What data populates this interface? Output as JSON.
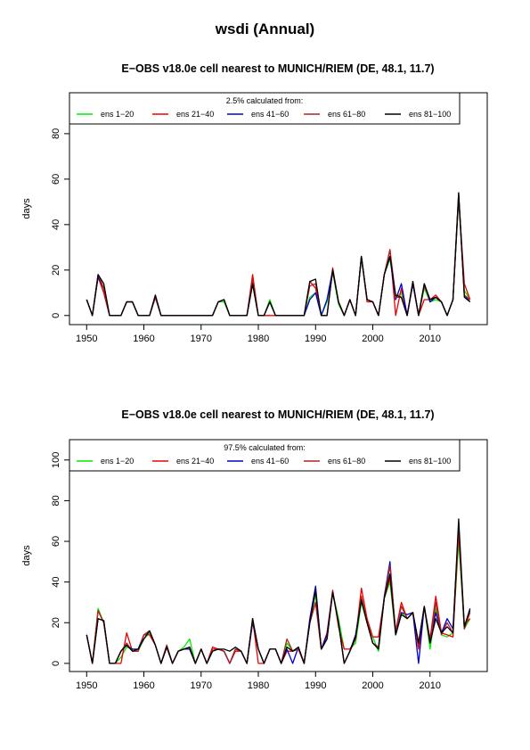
{
  "page": {
    "title": "wsdi (Annual)"
  },
  "chart_data": [
    {
      "type": "line",
      "title": "E−OBS v18.0e cell nearest to MUNICH/RIEM (DE, 48.1, 11.7)",
      "xlabel": "",
      "ylabel": "days",
      "xlim": [
        1947,
        2020
      ],
      "ylim": [
        -4,
        98
      ],
      "xticks": [
        1950,
        1960,
        1970,
        1980,
        1990,
        2000,
        2010
      ],
      "yticks": [
        0,
        20,
        40,
        60,
        80
      ],
      "legend": {
        "title": "2.5% calculated from:",
        "placement": "top"
      },
      "x": [
        1950,
        1951,
        1952,
        1953,
        1954,
        1955,
        1956,
        1957,
        1958,
        1959,
        1960,
        1961,
        1962,
        1963,
        1964,
        1965,
        1966,
        1967,
        1968,
        1969,
        1970,
        1971,
        1972,
        1973,
        1974,
        1975,
        1976,
        1977,
        1978,
        1979,
        1980,
        1981,
        1982,
        1983,
        1984,
        1985,
        1986,
        1987,
        1988,
        1989,
        1990,
        1991,
        1992,
        1993,
        1994,
        1995,
        1996,
        1997,
        1998,
        1999,
        2000,
        2001,
        2002,
        2003,
        2004,
        2005,
        2006,
        2007,
        2008,
        2009,
        2010,
        2011,
        2012,
        2013,
        2014,
        2015,
        2016,
        2017
      ],
      "series": [
        {
          "name": "ens 1−20",
          "color": "#00ee00",
          "values": [
            7,
            0,
            17,
            10,
            0,
            0,
            0,
            6,
            6,
            0,
            0,
            0,
            8,
            0,
            0,
            0,
            0,
            0,
            0,
            0,
            0,
            0,
            0,
            6,
            6,
            0,
            0,
            0,
            0,
            14,
            0,
            0,
            7,
            0,
            0,
            0,
            0,
            0,
            0,
            8,
            10,
            0,
            6,
            19,
            5,
            0,
            7,
            0,
            25,
            7,
            6,
            0,
            18,
            25,
            8,
            10,
            0,
            14,
            0,
            12,
            6,
            7,
            6,
            0,
            7,
            51,
            11,
            7
          ]
        },
        {
          "name": "ens 21−40",
          "color": "#ee0000",
          "values": [
            7,
            0,
            17,
            10,
            0,
            0,
            0,
            6,
            6,
            0,
            0,
            0,
            9,
            0,
            0,
            0,
            0,
            0,
            0,
            0,
            0,
            0,
            0,
            6,
            7,
            0,
            0,
            0,
            0,
            18,
            0,
            0,
            0,
            0,
            0,
            0,
            0,
            0,
            0,
            15,
            12,
            0,
            0,
            21,
            6,
            0,
            7,
            0,
            26,
            6,
            6,
            0,
            18,
            29,
            0,
            12,
            0,
            14,
            0,
            7,
            7,
            9,
            6,
            0,
            7,
            52,
            14,
            7
          ]
        },
        {
          "name": "ens 41−60",
          "color": "#0000cc",
          "values": [
            7,
            0,
            17,
            12,
            0,
            0,
            0,
            6,
            6,
            0,
            0,
            0,
            8,
            0,
            0,
            0,
            0,
            0,
            0,
            0,
            0,
            0,
            0,
            6,
            7,
            0,
            0,
            0,
            0,
            14,
            0,
            0,
            6,
            0,
            0,
            0,
            0,
            0,
            0,
            7,
            10,
            0,
            7,
            20,
            6,
            0,
            7,
            0,
            26,
            7,
            6,
            0,
            18,
            26,
            7,
            14,
            0,
            14,
            0,
            14,
            6,
            8,
            6,
            0,
            7,
            53,
            9,
            6
          ]
        },
        {
          "name": "ens 61−80",
          "color": "#b22222",
          "values": [
            7,
            0,
            18,
            12,
            0,
            0,
            0,
            6,
            6,
            0,
            0,
            0,
            8,
            0,
            0,
            0,
            0,
            0,
            0,
            0,
            0,
            0,
            0,
            6,
            7,
            0,
            0,
            0,
            0,
            16,
            0,
            0,
            6,
            0,
            0,
            0,
            0,
            0,
            0,
            13,
            14,
            0,
            0,
            20,
            6,
            0,
            7,
            0,
            26,
            7,
            6,
            0,
            18,
            29,
            8,
            8,
            0,
            15,
            0,
            13,
            7,
            8,
            6,
            0,
            7,
            54,
            9,
            7
          ]
        },
        {
          "name": "ens 81−100",
          "color": "#000000",
          "values": [
            7,
            0,
            18,
            14,
            0,
            0,
            0,
            6,
            6,
            0,
            0,
            0,
            9,
            0,
            0,
            0,
            0,
            0,
            0,
            0,
            0,
            0,
            0,
            6,
            7,
            0,
            0,
            0,
            0,
            14,
            0,
            0,
            6,
            0,
            0,
            0,
            0,
            0,
            0,
            15,
            16,
            0,
            0,
            20,
            6,
            0,
            7,
            0,
            26,
            7,
            6,
            0,
            18,
            26,
            9,
            8,
            0,
            15,
            0,
            14,
            7,
            8,
            6,
            0,
            7,
            54,
            8,
            6
          ]
        }
      ]
    },
    {
      "type": "line",
      "title": "E−OBS v18.0e cell nearest to MUNICH/RIEM (DE, 48.1, 11.7)",
      "xlabel": "",
      "ylabel": "days",
      "xlim": [
        1947,
        2020
      ],
      "ylim": [
        -4,
        110
      ],
      "xticks": [
        1950,
        1960,
        1970,
        1980,
        1990,
        2000,
        2010
      ],
      "yticks": [
        0,
        20,
        40,
        60,
        80,
        100
      ],
      "legend": {
        "title": "97.5% calculated from:",
        "placement": "top"
      },
      "x": [
        1950,
        1951,
        1952,
        1953,
        1954,
        1955,
        1956,
        1957,
        1958,
        1959,
        1960,
        1961,
        1962,
        1963,
        1964,
        1965,
        1966,
        1967,
        1968,
        1969,
        1970,
        1971,
        1972,
        1973,
        1974,
        1975,
        1976,
        1977,
        1978,
        1979,
        1980,
        1981,
        1982,
        1983,
        1984,
        1985,
        1986,
        1987,
        1988,
        1989,
        1990,
        1991,
        1992,
        1993,
        1994,
        1995,
        1996,
        1997,
        1998,
        1999,
        2000,
        2001,
        2002,
        2003,
        2004,
        2005,
        2006,
        2007,
        2008,
        2009,
        2010,
        2011,
        2012,
        2013,
        2014,
        2015,
        2016,
        2017
      ],
      "series": [
        {
          "name": "ens 1−20",
          "color": "#00ee00",
          "values": [
            14,
            0,
            27,
            20,
            0,
            0,
            3,
            8,
            7,
            6,
            12,
            15,
            9,
            0,
            8,
            0,
            6,
            8,
            12,
            0,
            7,
            0,
            6,
            7,
            6,
            0,
            7,
            6,
            0,
            22,
            7,
            0,
            7,
            7,
            0,
            10,
            6,
            8,
            0,
            20,
            34,
            7,
            12,
            35,
            22,
            7,
            7,
            10,
            30,
            20,
            13,
            6,
            32,
            40,
            14,
            25,
            22,
            25,
            8,
            28,
            7,
            27,
            14,
            13,
            15,
            60,
            17,
            22
          ]
        },
        {
          "name": "ens 21−40",
          "color": "#ee0000",
          "values": [
            14,
            0,
            26,
            20,
            0,
            0,
            0,
            15,
            6,
            6,
            14,
            14,
            9,
            0,
            8,
            0,
            6,
            7,
            7,
            0,
            7,
            0,
            8,
            7,
            6,
            0,
            6,
            6,
            0,
            22,
            0,
            0,
            7,
            7,
            0,
            6,
            6,
            7,
            0,
            20,
            30,
            7,
            15,
            36,
            18,
            7,
            7,
            12,
            37,
            22,
            13,
            13,
            32,
            42,
            16,
            30,
            22,
            25,
            7,
            28,
            12,
            33,
            15,
            14,
            13,
            64,
            19,
            22
          ]
        },
        {
          "name": "ens 41−60",
          "color": "#0000cc",
          "values": [
            14,
            0,
            22,
            21,
            0,
            0,
            6,
            9,
            7,
            7,
            14,
            16,
            9,
            0,
            9,
            0,
            6,
            7,
            7,
            0,
            7,
            0,
            6,
            7,
            6,
            0,
            7,
            6,
            0,
            20,
            7,
            0,
            7,
            7,
            0,
            7,
            0,
            8,
            0,
            22,
            38,
            7,
            14,
            35,
            20,
            0,
            6,
            14,
            32,
            20,
            10,
            8,
            33,
            50,
            14,
            25,
            24,
            25,
            0,
            28,
            11,
            25,
            15,
            22,
            17,
            67,
            17,
            26
          ]
        },
        {
          "name": "ens 61−80",
          "color": "#b22222",
          "values": [
            14,
            0,
            26,
            20,
            0,
            0,
            6,
            10,
            6,
            6,
            14,
            16,
            9,
            0,
            9,
            0,
            6,
            7,
            8,
            0,
            7,
            0,
            7,
            7,
            6,
            0,
            7,
            6,
            0,
            21,
            7,
            0,
            7,
            7,
            0,
            12,
            6,
            7,
            0,
            20,
            30,
            7,
            12,
            35,
            20,
            0,
            6,
            12,
            33,
            20,
            10,
            8,
            32,
            48,
            16,
            28,
            22,
            25,
            10,
            28,
            10,
            30,
            14,
            20,
            15,
            65,
            17,
            25
          ]
        },
        {
          "name": "ens 81−100",
          "color": "#000000",
          "values": [
            14,
            0,
            22,
            21,
            0,
            0,
            6,
            9,
            6,
            7,
            12,
            16,
            9,
            0,
            8,
            0,
            6,
            7,
            8,
            0,
            7,
            0,
            6,
            7,
            7,
            6,
            8,
            6,
            0,
            22,
            7,
            0,
            7,
            7,
            0,
            8,
            6,
            8,
            0,
            20,
            36,
            7,
            12,
            35,
            20,
            0,
            6,
            13,
            31,
            20,
            10,
            7,
            32,
            44,
            14,
            24,
            22,
            25,
            10,
            28,
            10,
            22,
            15,
            18,
            15,
            71,
            18,
            27
          ]
        }
      ]
    }
  ]
}
